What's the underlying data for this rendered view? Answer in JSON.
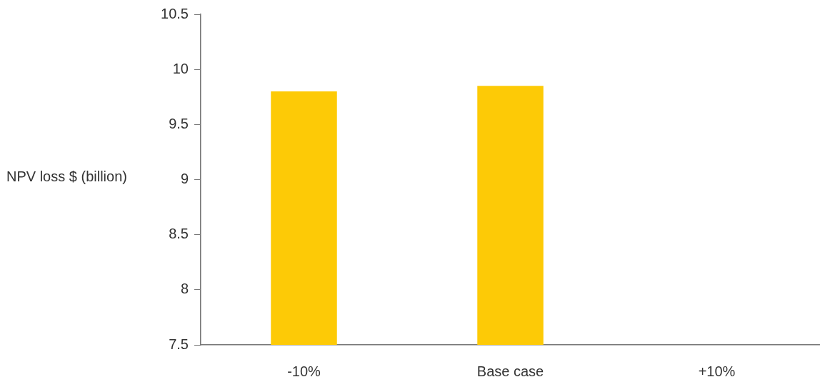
{
  "chart_data": {
    "type": "bar",
    "ylabel": "NPV loss $ (billion)",
    "categories": [
      "-10%",
      "Base case",
      "+10%"
    ],
    "values": [
      9.8,
      9.85,
      null
    ],
    "color": "#fdca06",
    "ylim": [
      7.5,
      10.5
    ],
    "yticks": [
      7.5,
      8,
      8.5,
      9,
      9.5,
      10,
      10.5
    ]
  }
}
